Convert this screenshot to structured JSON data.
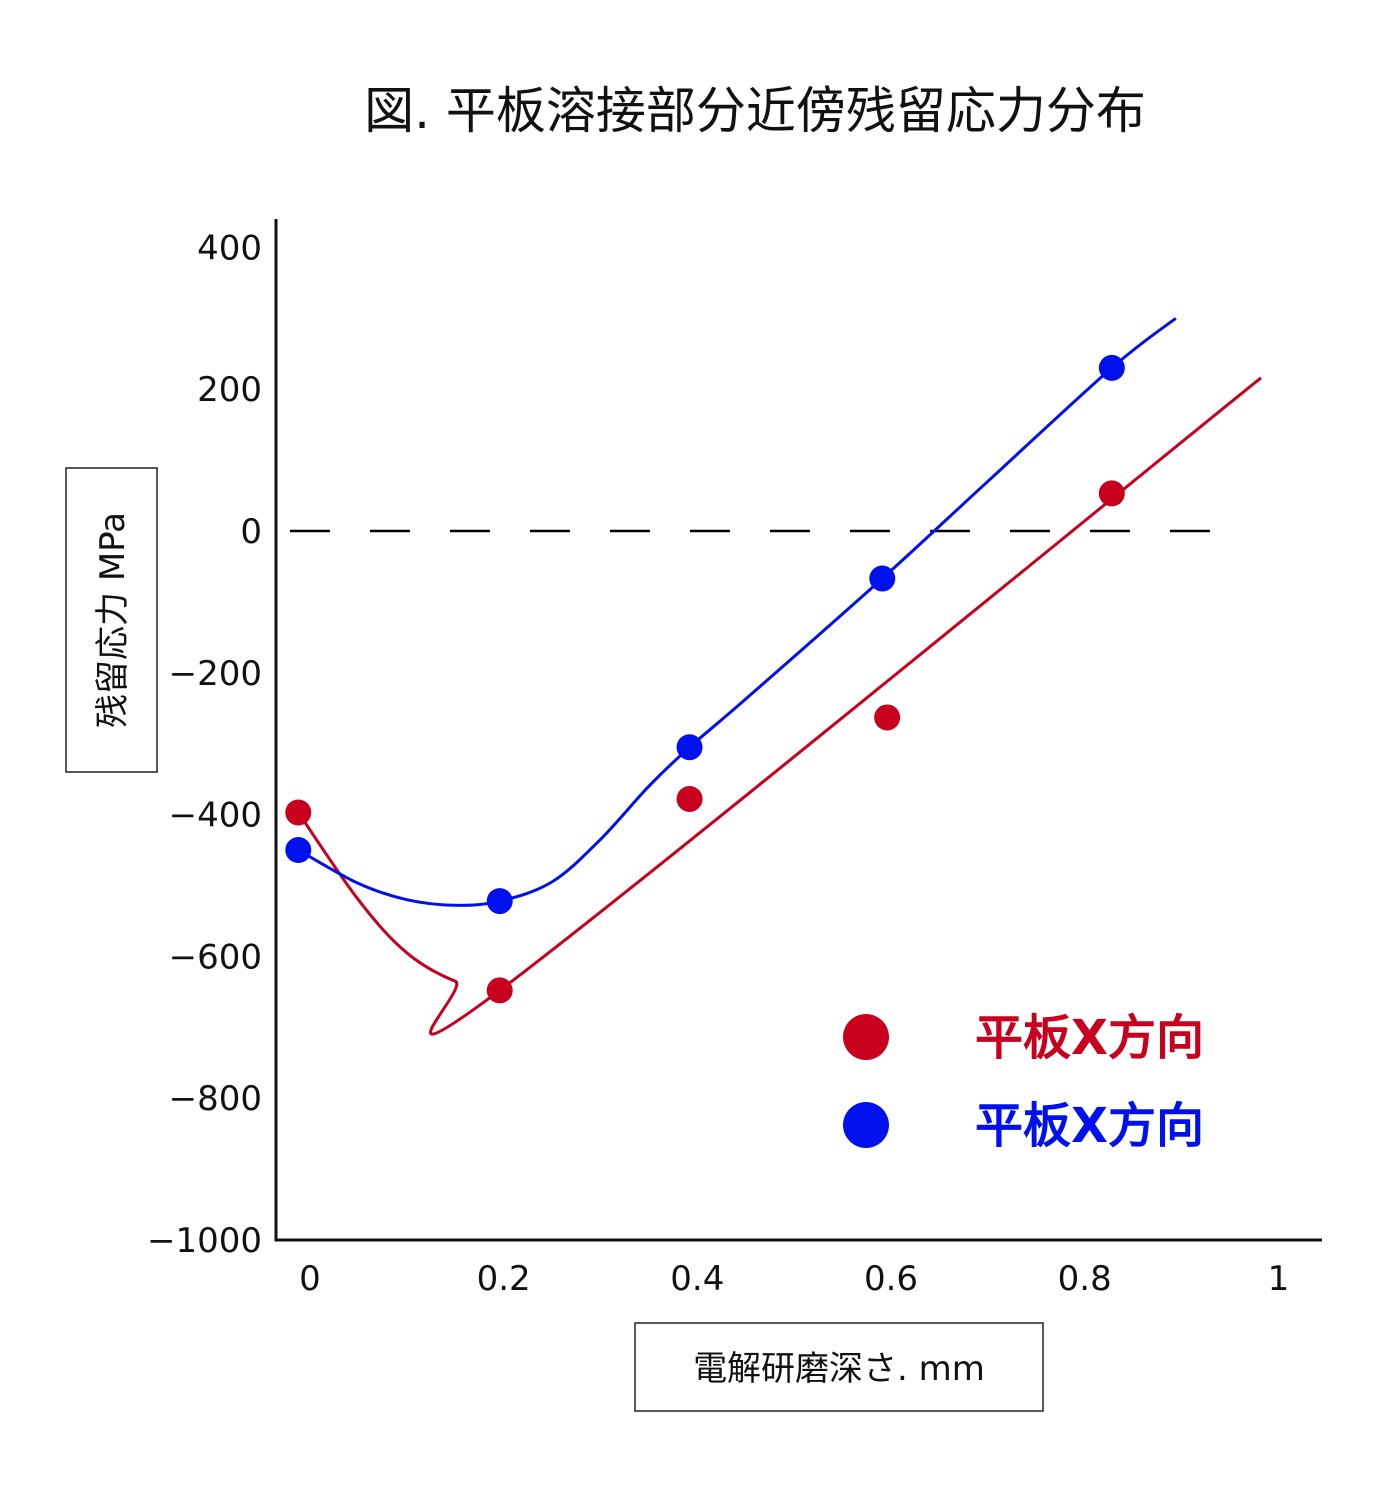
{
  "chart_data": {
    "type": "scatter",
    "title": "図. 平板溶接部分近傍残留応力分布",
    "xlabel": "電解研磨深さ. mm",
    "ylabel": "残留応力 MPa",
    "xlim": [
      -0.035,
      1.045
    ],
    "ylim": [
      -1000,
      440
    ],
    "x_ticks": [
      0,
      0.2,
      0.4,
      0.6,
      0.8,
      1
    ],
    "x_tick_labels": [
      "0",
      "0.2",
      "0.4",
      "0.6",
      "0.8",
      "1"
    ],
    "y_ticks": [
      400,
      200,
      0,
      -200,
      -400,
      -600,
      -800,
      -1000
    ],
    "y_tick_labels": [
      "400",
      "200",
      "0",
      "−200",
      "−400",
      "−600",
      "−800",
      "−1000"
    ],
    "reference_line": {
      "y": 0,
      "style": "dashed",
      "color": "#000000"
    },
    "grid": false,
    "legend_position": "lower-right",
    "series": [
      {
        "name": "平板X方向",
        "color": "#c8001e",
        "points": [
          {
            "x": -0.012,
            "y": -397
          },
          {
            "x": 0.196,
            "y": -648
          },
          {
            "x": 0.392,
            "y": -378
          },
          {
            "x": 0.596,
            "y": -263
          },
          {
            "x": 0.828,
            "y": 53
          }
        ],
        "fit": [
          {
            "x": -0.012,
            "y": -397
          },
          {
            "x": 0.05,
            "y": -520
          },
          {
            "x": 0.1,
            "y": -595
          },
          {
            "x": 0.15,
            "y": -635
          },
          {
            "x": 0.196,
            "y": -648
          },
          {
            "x": 0.982,
            "y": 216
          }
        ]
      },
      {
        "name": "平板X方向",
        "color": "#0011ee",
        "points": [
          {
            "x": -0.012,
            "y": -450
          },
          {
            "x": 0.196,
            "y": -522
          },
          {
            "x": 0.392,
            "y": -305
          },
          {
            "x": 0.591,
            "y": -67
          },
          {
            "x": 0.828,
            "y": 230
          }
        ],
        "fit": [
          {
            "x": -0.012,
            "y": -450
          },
          {
            "x": 0.05,
            "y": -497
          },
          {
            "x": 0.1,
            "y": -520
          },
          {
            "x": 0.15,
            "y": -528
          },
          {
            "x": 0.196,
            "y": -522
          },
          {
            "x": 0.25,
            "y": -495
          },
          {
            "x": 0.3,
            "y": -435
          },
          {
            "x": 0.35,
            "y": -360
          },
          {
            "x": 0.392,
            "y": -305
          },
          {
            "x": 0.45,
            "y": -237
          },
          {
            "x": 0.591,
            "y": -67
          },
          {
            "x": 0.7,
            "y": 70
          },
          {
            "x": 0.828,
            "y": 230
          },
          {
            "x": 0.894,
            "y": 300
          }
        ]
      }
    ]
  }
}
